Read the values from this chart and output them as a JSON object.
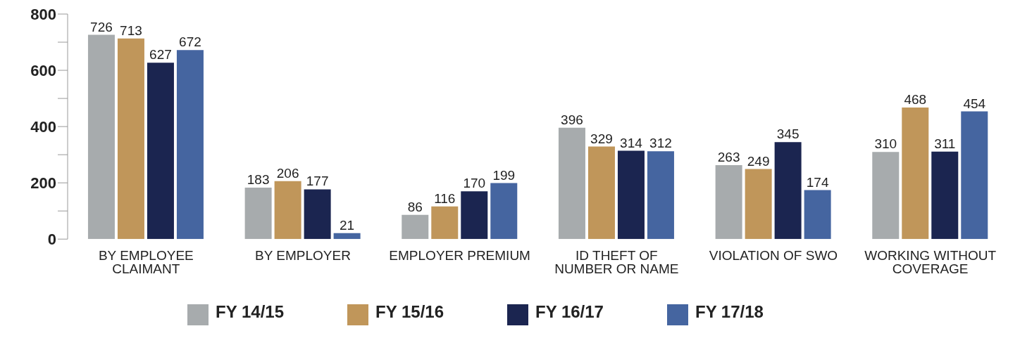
{
  "chart_data": {
    "type": "bar",
    "categories": [
      "BY EMPLOYEE CLAIMANT",
      "BY EMPLOYER",
      "EMPLOYER PREMIUM",
      "ID THEFT OF NUMBER OR NAME",
      "VIOLATION OF SWO",
      "WORKING WITHOUT COVERAGE"
    ],
    "series": [
      {
        "name": "FY 14/15",
        "color": "#a7abad",
        "values": [
          726,
          183,
          86,
          396,
          263,
          310
        ]
      },
      {
        "name": "FY 15/16",
        "color": "#c0965a",
        "values": [
          713,
          206,
          116,
          329,
          249,
          468
        ]
      },
      {
        "name": "FY 16/17",
        "color": "#1b2550",
        "values": [
          627,
          177,
          170,
          314,
          345,
          311
        ]
      },
      {
        "name": "FY 17/18",
        "color": "#4565a0",
        "values": [
          672,
          21,
          199,
          312,
          174,
          454
        ]
      }
    ],
    "ylim": [
      0,
      800
    ],
    "yticks": [
      0,
      {
        "value": 100,
        "label": null
      },
      200,
      {
        "value": 300,
        "label": null
      },
      400,
      {
        "value": 500,
        "label": null
      },
      600,
      {
        "value": 700,
        "label": null
      },
      800
    ],
    "grid": false,
    "legend": "bottom",
    "data_labels": true
  }
}
